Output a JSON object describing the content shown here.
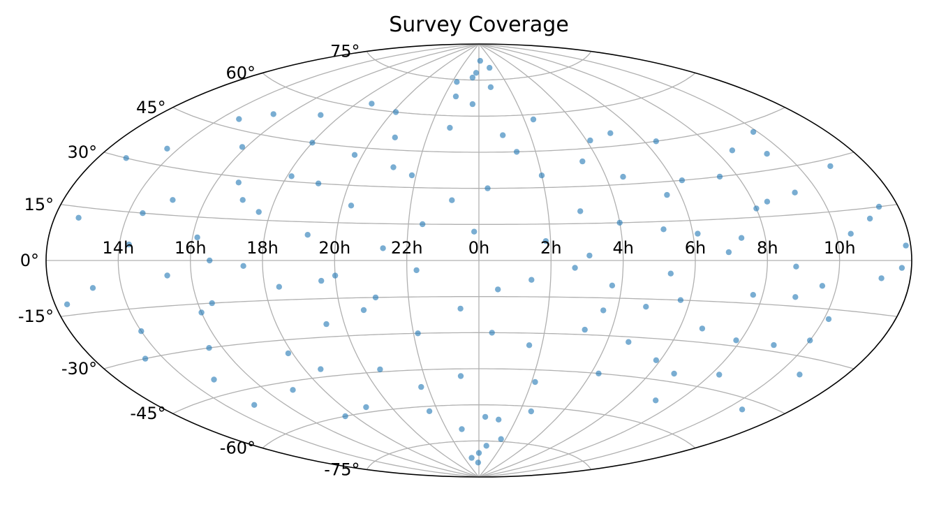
{
  "chart_data": {
    "type": "scatter",
    "projection": "aitoff",
    "title": "Survey Coverage",
    "xlabel": "",
    "ylabel": "",
    "grid": true,
    "marker_color": "#1f77b4",
    "marker_alpha": 0.6,
    "ra_tick_labels": [
      "14h",
      "16h",
      "18h",
      "20h",
      "22h",
      "0h",
      "2h",
      "4h",
      "6h",
      "8h",
      "10h"
    ],
    "ra_tick_values_deg": [
      -150,
      -120,
      -90,
      -60,
      -30,
      0,
      30,
      60,
      90,
      120,
      150
    ],
    "dec_tick_labels": [
      "-75°",
      "-60°",
      "-45°",
      "-30°",
      "-15°",
      "0°",
      "15°",
      "30°",
      "45°",
      "60°",
      "75°"
    ],
    "dec_tick_values_deg": [
      -75,
      -60,
      -45,
      -30,
      -15,
      0,
      15,
      30,
      45,
      60,
      75
    ],
    "xlim_deg": [
      -180,
      180
    ],
    "ylim_deg": [
      -90,
      90
    ],
    "series": [
      {
        "values": [
          [
            -170,
            12
          ],
          [
            -162,
            -8
          ],
          [
            -155,
            35
          ],
          [
            -150,
            -22
          ],
          [
            -146,
            5
          ],
          [
            -141,
            48
          ],
          [
            -138,
            -40
          ],
          [
            -134,
            20
          ],
          [
            -130,
            -5
          ],
          [
            -126,
            -30
          ],
          [
            -122,
            40
          ],
          [
            -118,
            8
          ],
          [
            -114,
            -15
          ],
          [
            -110,
            28
          ],
          [
            -106,
            -48
          ],
          [
            -102,
            55
          ],
          [
            -98,
            -2
          ],
          [
            -95,
            18
          ],
          [
            -92,
            -35
          ],
          [
            -88,
            32
          ],
          [
            -84,
            -10
          ],
          [
            -80,
            62
          ],
          [
            -76,
            -58
          ],
          [
            -72,
            10
          ],
          [
            -68,
            -25
          ],
          [
            -64,
            42
          ],
          [
            -60,
            -6
          ],
          [
            -56,
            22
          ],
          [
            -52,
            -44
          ],
          [
            -48,
            50
          ],
          [
            -44,
            -15
          ],
          [
            -40,
            5
          ],
          [
            -36,
            -62
          ],
          [
            -32,
            35
          ],
          [
            -28,
            -30
          ],
          [
            -24,
            15
          ],
          [
            -20,
            68
          ],
          [
            -16,
            -70
          ],
          [
            -12,
            25
          ],
          [
            -8,
            -20
          ],
          [
            -4,
            78
          ],
          [
            0,
            -80
          ],
          [
            4,
            30
          ],
          [
            8,
            -12
          ],
          [
            12,
            72
          ],
          [
            16,
            -66
          ],
          [
            20,
            45
          ],
          [
            24,
            -35
          ],
          [
            28,
            8
          ],
          [
            32,
            -50
          ],
          [
            36,
            58
          ],
          [
            40,
            -3
          ],
          [
            44,
            20
          ],
          [
            48,
            -28
          ],
          [
            52,
            40
          ],
          [
            56,
            -10
          ],
          [
            60,
            15
          ],
          [
            64,
            -45
          ],
          [
            68,
            33
          ],
          [
            72,
            -18
          ],
          [
            76,
            50
          ],
          [
            80,
            -5
          ],
          [
            84,
            25
          ],
          [
            88,
            -38
          ],
          [
            92,
            10
          ],
          [
            96,
            45
          ],
          [
            100,
            -25
          ],
          [
            104,
            3
          ],
          [
            108,
            -52
          ],
          [
            112,
            30
          ],
          [
            116,
            -12
          ],
          [
            120,
            18
          ],
          [
            124,
            -40
          ],
          [
            128,
            38
          ],
          [
            132,
            -2
          ],
          [
            136,
            -28
          ],
          [
            140,
            22
          ],
          [
            144,
            -8
          ],
          [
            148,
            42
          ],
          [
            152,
            -18
          ],
          [
            156,
            8
          ],
          [
            160,
            -35
          ],
          [
            164,
            28
          ],
          [
            168,
            -5
          ],
          [
            172,
            15
          ],
          [
            176,
            -2
          ],
          [
            178,
            4
          ],
          [
            -175,
            -12
          ],
          [
            -168,
            30
          ],
          [
            -158,
            -30
          ],
          [
            -144,
            15
          ],
          [
            -136,
            -50
          ],
          [
            -128,
            52
          ],
          [
            -120,
            -18
          ],
          [
            -112,
            0
          ],
          [
            -104,
            22
          ],
          [
            -96,
            -60
          ],
          [
            -90,
            45
          ],
          [
            -82,
            -42
          ],
          [
            -74,
            30
          ],
          [
            -66,
            -8
          ],
          [
            -58,
            60
          ],
          [
            -50,
            -20
          ],
          [
            -42,
            38
          ],
          [
            -34,
            -52
          ],
          [
            -26,
            -4
          ],
          [
            -18,
            55
          ],
          [
            -10,
            -48
          ],
          [
            -2,
            12
          ],
          [
            6,
            -30
          ],
          [
            14,
            52
          ],
          [
            22,
            -8
          ],
          [
            30,
            35
          ],
          [
            38,
            -62
          ],
          [
            46,
            2
          ],
          [
            54,
            -20
          ],
          [
            62,
            48
          ],
          [
            70,
            -32
          ],
          [
            78,
            12
          ],
          [
            86,
            -15
          ],
          [
            94,
            30
          ],
          [
            102,
            -42
          ],
          [
            110,
            8
          ],
          [
            118,
            -28
          ],
          [
            126,
            20
          ],
          [
            134,
            -12
          ],
          [
            142,
            35
          ],
          [
            150,
            -25
          ],
          [
            158,
            -48
          ],
          [
            166,
            12
          ],
          [
            -2,
            -84
          ],
          [
            3,
            83
          ],
          [
            -8,
            76
          ],
          [
            10,
            -77
          ],
          [
            -15,
            -82
          ],
          [
            18,
            80
          ],
          [
            -25,
            74
          ],
          [
            25,
            -74
          ],
          [
            -5,
            65
          ],
          [
            5,
            -65
          ]
        ]
      }
    ],
    "legend": ""
  }
}
